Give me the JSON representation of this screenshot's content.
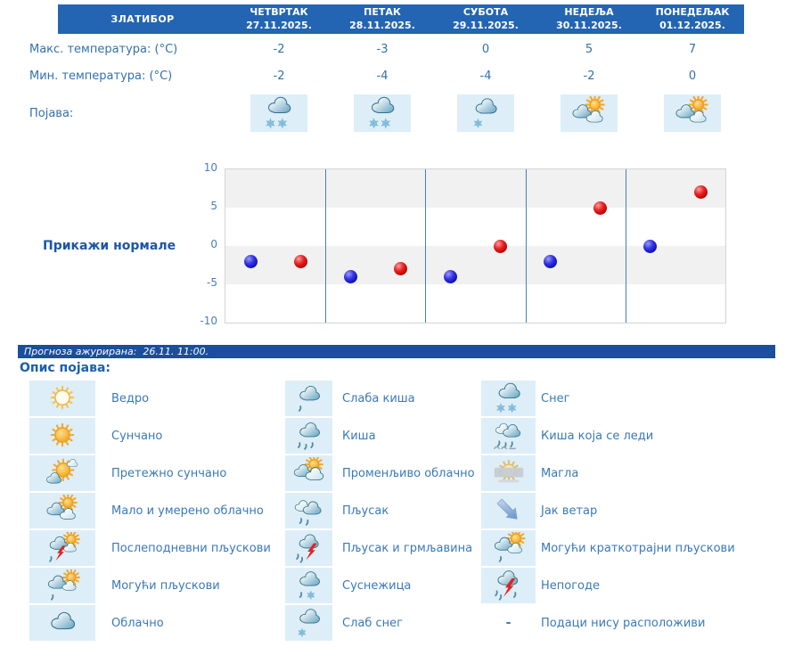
{
  "station": "ЗЛАТИБОР",
  "days": [
    {
      "name": "ЧЕТВРТАК",
      "date": "27.11.2025."
    },
    {
      "name": "ПЕТАК",
      "date": "28.11.2025."
    },
    {
      "name": "СУБОТА",
      "date": "29.11.2025."
    },
    {
      "name": "НЕДЕЉА",
      "date": "30.11.2025."
    },
    {
      "name": "ПОНЕДЕЉАК",
      "date": "01.12.2025."
    }
  ],
  "table": {
    "max_temp_label": "Макс. температура: (°C)",
    "min_temp_label": "Мин. температура: (°C)",
    "phenomenon_label": "Појава:",
    "max_temps": [
      "-2",
      "-3",
      "0",
      "5",
      "7"
    ],
    "min_temps": [
      "-2",
      "-4",
      "-4",
      "-2",
      "0"
    ],
    "phenomenon_icons": [
      "snow",
      "snow",
      "light-snow",
      "partly-cloudy",
      "partly-cloudy"
    ]
  },
  "chart": {
    "normals_toggle_label": "Прикажи нормале"
  },
  "chart_data": {
    "type": "scatter",
    "categories": [
      "ЧЕТВРТАК 27.11.2025.",
      "ПЕТАК 28.11.2025.",
      "СУБОТА 29.11.2025.",
      "НЕДЕЉА 30.11.2025.",
      "ПОНЕДЕЉАК 01.12.2025."
    ],
    "series": [
      {
        "name": "Мин. температура (°C)",
        "color": "#1c1ccd",
        "values": [
          -2,
          -4,
          -4,
          -2,
          0
        ]
      },
      {
        "name": "Макс. температура (°C)",
        "color": "#dd1414",
        "values": [
          -2,
          -3,
          0,
          5,
          7
        ]
      }
    ],
    "ylim": [
      -10,
      10
    ],
    "yticks": [
      10,
      5,
      0,
      -5,
      -10
    ],
    "grid": "horizontal-bands",
    "legend_position": "none"
  },
  "status_bar": {
    "text": "Прогноза ажурирана:  26.11. 11:00."
  },
  "legend": {
    "heading": "Опис појава:",
    "columns": [
      [
        {
          "icon": "clear",
          "label": "Ведро"
        },
        {
          "icon": "sunny",
          "label": "Сунчано"
        },
        {
          "icon": "mostly-sunny",
          "label": "Претежно сунчано"
        },
        {
          "icon": "partly-cloudy",
          "label": "Мало и умерено облачно"
        },
        {
          "icon": "afternoon-showers",
          "label": "Послеподневни пљускови"
        },
        {
          "icon": "possible-showers",
          "label": "Могући пљускови"
        },
        {
          "icon": "cloudy",
          "label": "Облачно"
        }
      ],
      [
        {
          "icon": "light-rain",
          "label": "Слаба киша"
        },
        {
          "icon": "rain",
          "label": "Киша"
        },
        {
          "icon": "variable-cloudy",
          "label": "Променљиво облачно"
        },
        {
          "icon": "shower",
          "label": "Пљусак"
        },
        {
          "icon": "shower-thunder",
          "label": "Пљусак и грмљавина"
        },
        {
          "icon": "sleet",
          "label": "Суснежица"
        },
        {
          "icon": "light-snow",
          "label": "Слаб снег"
        }
      ],
      [
        {
          "icon": "snow",
          "label": "Снег"
        },
        {
          "icon": "freezing-rain",
          "label": "Киша која се леди"
        },
        {
          "icon": "fog",
          "label": "Магла"
        },
        {
          "icon": "strong-wind",
          "label": "Јак ветар"
        },
        {
          "icon": "possible-short-showers",
          "label": "Могући краткотрајни пљускови"
        },
        {
          "icon": "storms",
          "label": "Непогоде"
        },
        {
          "icon": "none",
          "placeholder": "-",
          "label": "Подаци нису расположиви"
        }
      ]
    ]
  },
  "colors": {
    "header_bg": "#2365b2",
    "status_bg": "#1b4e9b",
    "icon_cell_bg": "#ddeef8",
    "text_blue": "#3371ad",
    "link_blue": "#1e55a5",
    "axis_blue": "#4a7db8",
    "band_gray": "#f1f1f1",
    "dot_blue": "#1c1ccd",
    "dot_red": "#dd1414"
  }
}
